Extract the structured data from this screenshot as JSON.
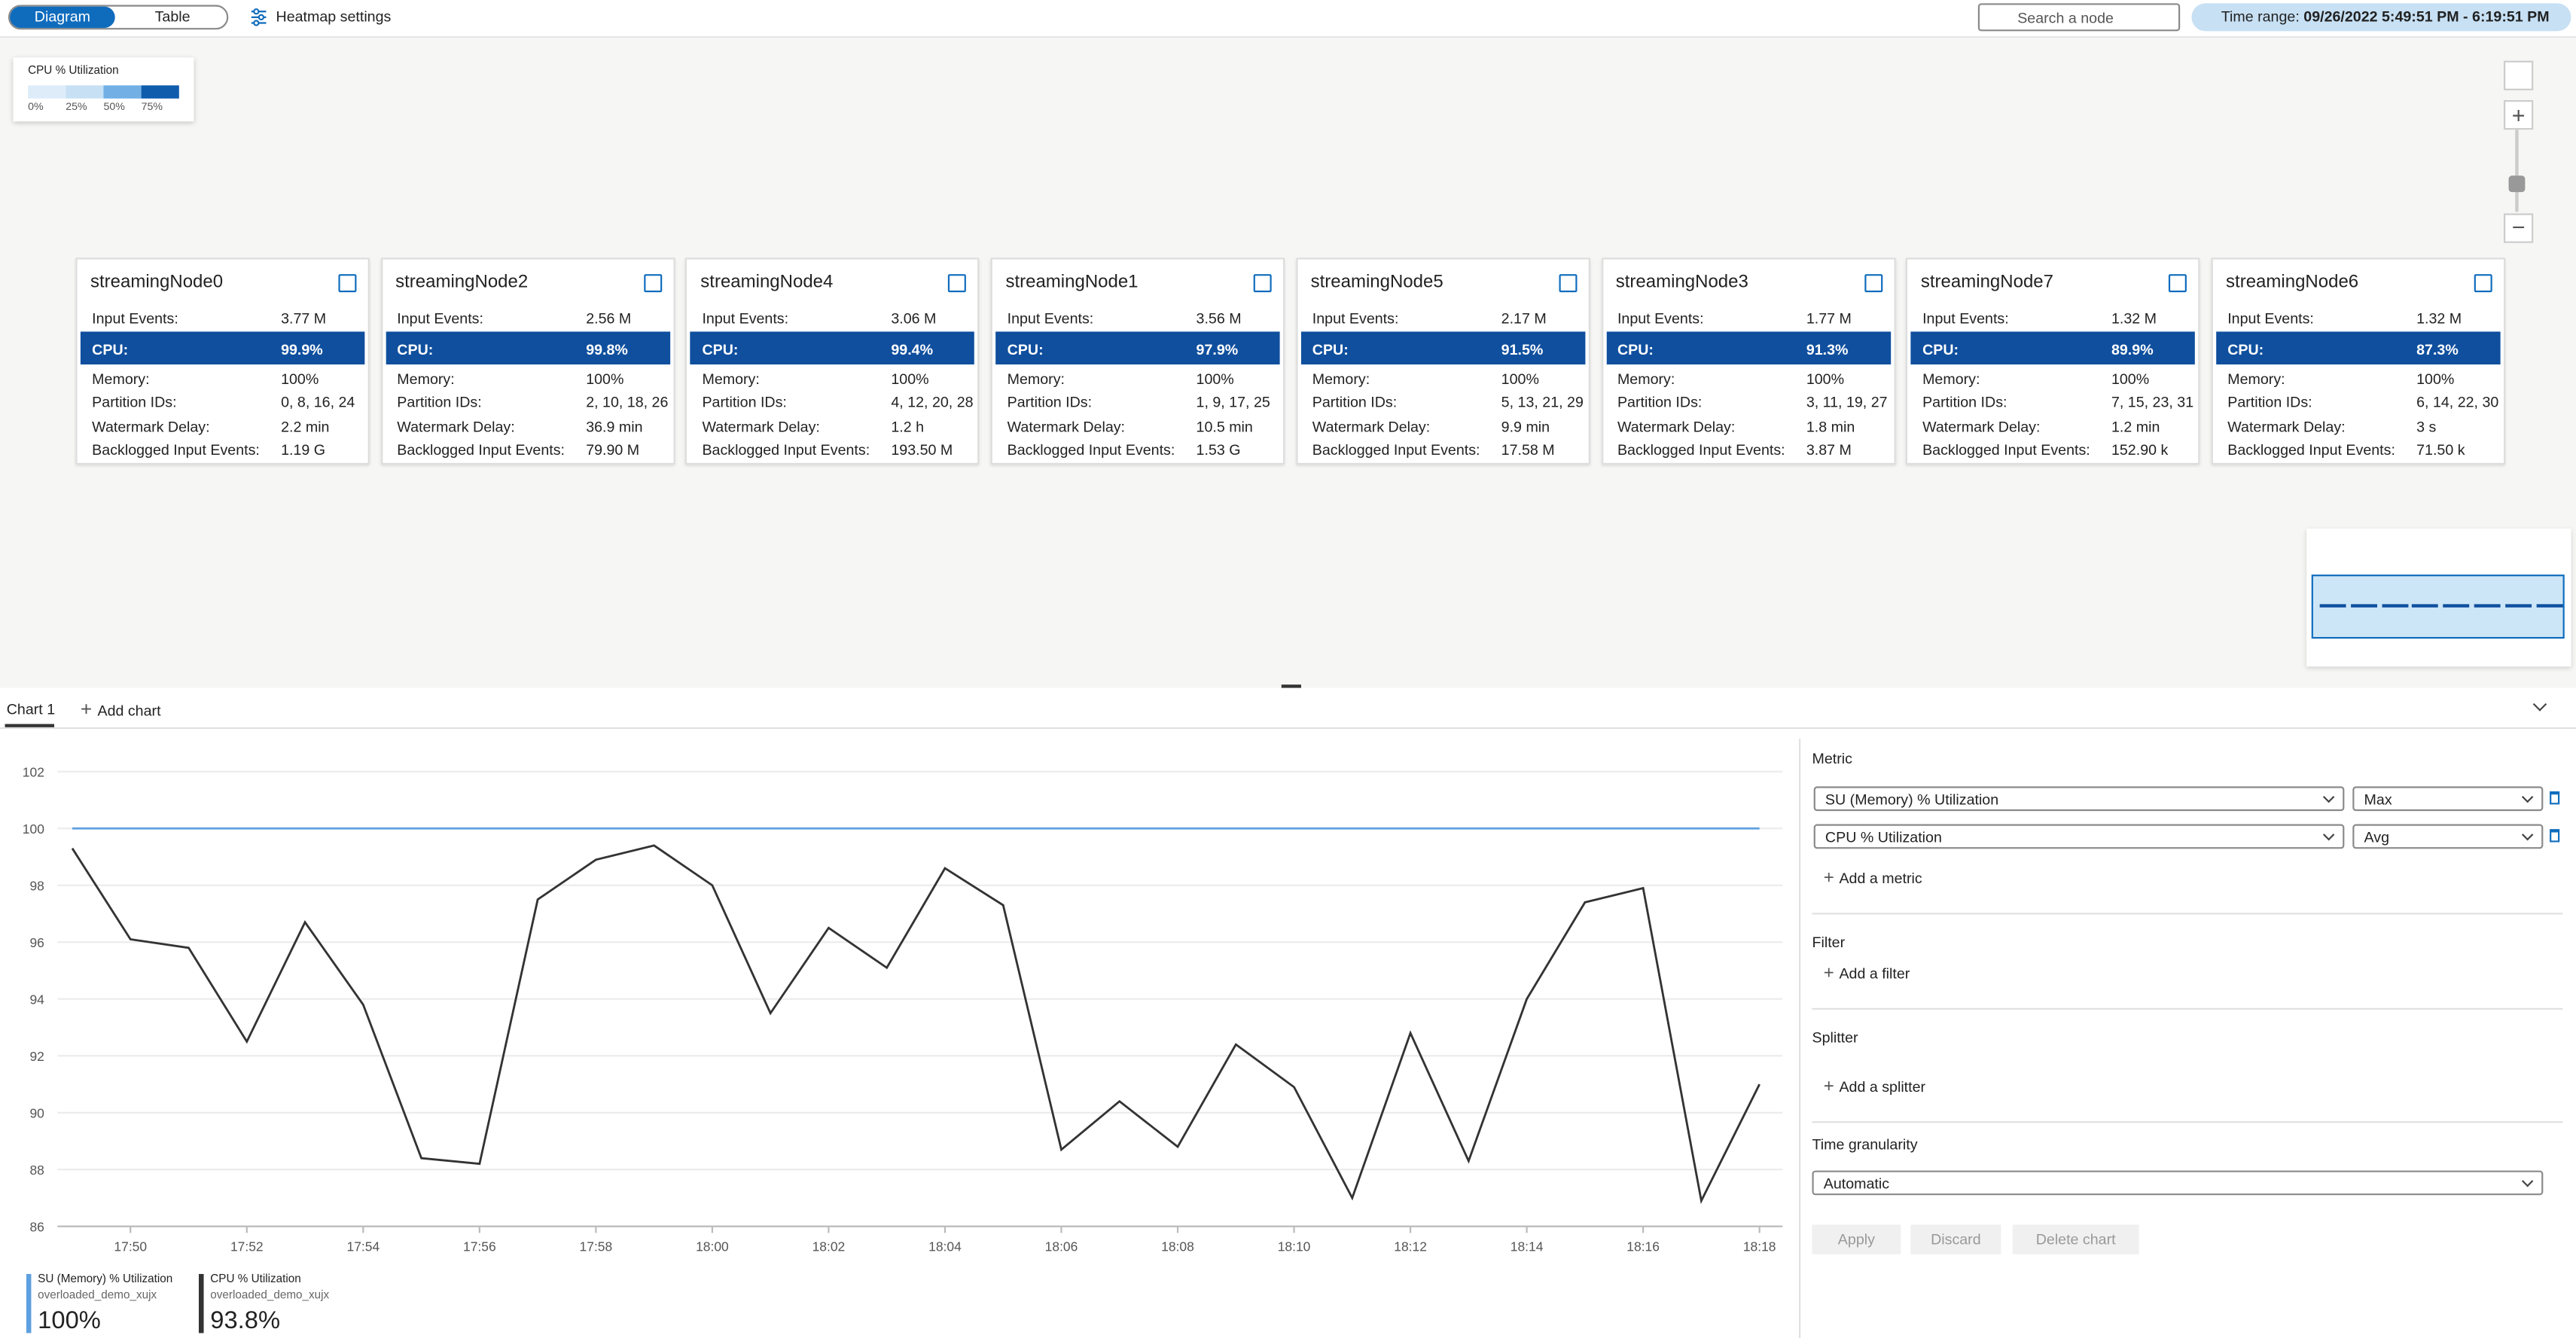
{
  "toolbar": {
    "view_tabs": [
      "Diagram",
      "Table"
    ],
    "heatmap_settings": "Heatmap settings",
    "search_placeholder": "Search a node",
    "time_range_label": "Time range:",
    "time_range": "09/26/2022 5:49:51 PM - 6:19:51 PM"
  },
  "heatmap_legend": {
    "title": "CPU % Utilization",
    "ticks": [
      "0%",
      "25%",
      "50%",
      "75%"
    ],
    "colors": [
      "#deecf9",
      "#c7e0f4",
      "#71afe5",
      "#0f5cad"
    ]
  },
  "node_fields": {
    "input_events": "Input Events:",
    "cpu": "CPU:",
    "memory": "Memory:",
    "partition_ids": "Partition IDs:",
    "watermark_delay": "Watermark Delay:",
    "backlogged_input_events": "Backlogged Input Events:"
  },
  "nodes": [
    {
      "name": "streamingNode0",
      "input_events": "3.77 M",
      "cpu": "99.9%",
      "memory": "100%",
      "partition_ids": "0, 8, 16, 24",
      "watermark_delay": "2.2 min",
      "backlogged_input_events": "1.19 G"
    },
    {
      "name": "streamingNode2",
      "input_events": "2.56 M",
      "cpu": "99.8%",
      "memory": "100%",
      "partition_ids": "2, 10, 18, 26",
      "watermark_delay": "36.9 min",
      "backlogged_input_events": "79.90 M"
    },
    {
      "name": "streamingNode4",
      "input_events": "3.06 M",
      "cpu": "99.4%",
      "memory": "100%",
      "partition_ids": "4, 12, 20, 28",
      "watermark_delay": "1.2 h",
      "backlogged_input_events": "193.50 M"
    },
    {
      "name": "streamingNode1",
      "input_events": "3.56 M",
      "cpu": "97.9%",
      "memory": "100%",
      "partition_ids": "1, 9, 17, 25",
      "watermark_delay": "10.5 min",
      "backlogged_input_events": "1.53 G"
    },
    {
      "name": "streamingNode5",
      "input_events": "2.17 M",
      "cpu": "91.5%",
      "memory": "100%",
      "partition_ids": "5, 13, 21, 29",
      "watermark_delay": "9.9 min",
      "backlogged_input_events": "17.58 M"
    },
    {
      "name": "streamingNode3",
      "input_events": "1.77 M",
      "cpu": "91.3%",
      "memory": "100%",
      "partition_ids": "3, 11, 19, 27",
      "watermark_delay": "1.8 min",
      "backlogged_input_events": "3.87 M"
    },
    {
      "name": "streamingNode7",
      "input_events": "1.32 M",
      "cpu": "89.9%",
      "memory": "100%",
      "partition_ids": "7, 15, 23, 31",
      "watermark_delay": "1.2 min",
      "backlogged_input_events": "152.90 k"
    },
    {
      "name": "streamingNode6",
      "input_events": "1.32 M",
      "cpu": "87.3%",
      "memory": "100%",
      "partition_ids": "6, 14, 22, 30",
      "watermark_delay": "3 s",
      "backlogged_input_events": "71.50 k"
    }
  ],
  "chart_tabs": {
    "tabs": [
      "Chart 1"
    ],
    "add": "Add chart"
  },
  "chart_data": {
    "type": "line",
    "categories": [
      null,
      "17:50",
      null,
      "17:52",
      null,
      "17:54",
      null,
      "17:56",
      null,
      "17:58",
      null,
      "18:00",
      null,
      "18:02",
      null,
      "18:04",
      null,
      "18:06",
      null,
      "18:08",
      null,
      "18:10",
      null,
      "18:12",
      null,
      "18:14",
      null,
      "18:16",
      null,
      "18:18"
    ],
    "series": [
      {
        "name": "SU (Memory) % Utilization",
        "color": "#5ea0e0",
        "values": [
          100,
          100,
          100,
          100,
          100,
          100,
          100,
          100,
          100,
          100,
          100,
          100,
          100,
          100,
          100,
          100,
          100,
          100,
          100,
          100,
          100,
          100,
          100,
          100,
          100,
          100,
          100,
          100,
          100,
          100
        ]
      },
      {
        "name": "CPU % Utilization",
        "color": "#333333",
        "values": [
          99.3,
          96.1,
          95.8,
          92.5,
          96.7,
          93.8,
          88.4,
          88.2,
          97.5,
          98.9,
          99.4,
          98.0,
          93.5,
          96.5,
          95.1,
          98.6,
          97.3,
          88.7,
          90.4,
          88.8,
          92.4,
          90.9,
          87.0,
          92.8,
          88.3,
          94.0,
          97.4,
          97.9,
          86.9,
          91.0
        ]
      }
    ],
    "ylim": [
      86,
      102
    ],
    "yticks": [
      86,
      88,
      90,
      92,
      94,
      96,
      98,
      100,
      102
    ],
    "grid": true
  },
  "chart_legend": [
    {
      "subtitle": "overloaded_demo_xujx",
      "value": "100%"
    },
    {
      "subtitle": "overloaded_demo_xujx",
      "value": "93.8%"
    }
  ],
  "settings_panel": {
    "metric_title": "Metric",
    "metrics": [
      {
        "metric": "SU (Memory) % Utilization",
        "aggregation": "Max"
      },
      {
        "metric": "CPU % Utilization",
        "aggregation": "Avg"
      }
    ],
    "add_metric": "Add a metric",
    "filter_title": "Filter",
    "add_filter": "Add a filter",
    "splitter_title": "Splitter",
    "add_splitter": "Add a splitter",
    "granularity_title": "Time granularity",
    "granularity": "Automatic",
    "buttons": [
      "Apply",
      "Discard",
      "Delete chart"
    ]
  }
}
